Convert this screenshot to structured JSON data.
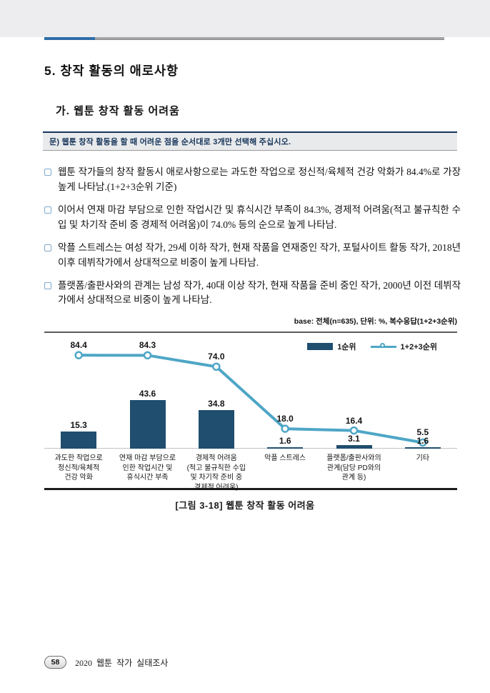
{
  "page": {
    "section_title": "5. 창작 활동의 애로사항",
    "subsection_title": "가. 웹툰 창작 활동 어려움",
    "question": "문) 웹툰 창작 활동을 할 때 어려운 점을 순서대로 3개만 선택해 주십시오.",
    "bullets": [
      "웹툰 작가들의 창작 활동시 애로사항으로는 과도한 작업으로 정신적/육체적 건강 악화가 84.4%로 가장 높게 나타남.(1+2+3순위 기준)",
      "이어서 연재 마감 부담으로 인한 작업시간 및 휴식시간 부족이 84.3%, 경제적 어려움(적고 불규칙한 수입 및 차기작 준비 중 경제적 어려움)이 74.0% 등의 순으로 높게 나타남.",
      "악플 스트레스는 여성 작가, 29세 이하 작가, 현재 작품을 연재중인 작가, 포털사이트 활동 작가, 2018년 이후 데뷔작가에서 상대적으로 비중이 높게 나타남.",
      "플랫폼/출판사와의 관계는 남성 작가, 40대 이상 작가, 현재 작품을 준비 중인 작가, 2000년 이전 데뷔작가에서 상대적으로 비중이 높게 나타남."
    ],
    "figure_caption": "[그림 3-18] 웹툰 창작 활동 어려움",
    "footer": {
      "page_number": "58",
      "report_title": "2020 웹툰 작가 실태조사"
    }
  },
  "colors": {
    "rule_blue": "#2f6da8",
    "rule_gray": "#a5a5a7",
    "question_bar_bg": "#e8eaec",
    "question_bar_border": "#17365c",
    "bullet_square": "#7fa9ce",
    "bar_navy": "#1f4e6e",
    "line_teal": "#4ea6c6"
  },
  "chart_data": {
    "type": "bar",
    "base_note": "base: 전체(n=635), 단위: %, 복수응답(1+2+3순위)",
    "categories": [
      "과도한 작업으로\n정신적/육체적\n건강 악화",
      "연재 마감 부담으로\n인한 작업시간 및\n휴식시간 부족",
      "경제적 어려움\n(적고 불규칙한 수입\n및 차기작 준비 중\n경제적 어려움)",
      "악플 스트레스",
      "플랫폼/출판사와의\n관계(담당 PD와의\n관계 등)",
      "기타"
    ],
    "series": [
      {
        "name": "1순위",
        "type": "bar",
        "color": "#1f4e6e",
        "values": [
          15.3,
          43.6,
          34.8,
          1.6,
          3.1,
          1.6
        ]
      },
      {
        "name": "1+2+3순위",
        "type": "line",
        "color": "#4ea6c6",
        "values": [
          84.4,
          84.3,
          74.0,
          18.0,
          16.4,
          5.5
        ]
      }
    ],
    "ylim": [
      0,
      100
    ],
    "unit": "%",
    "grid": false,
    "legend_position": "top-right"
  }
}
